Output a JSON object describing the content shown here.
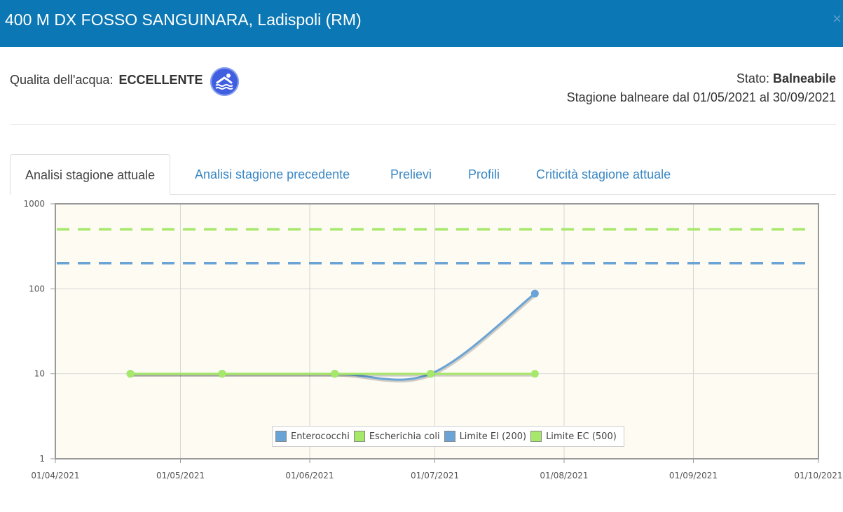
{
  "header": {
    "title": "400 M DX FOSSO SANGUINARA, Ladispoli (RM)",
    "close_label": "×"
  },
  "quality": {
    "label": "Qualita dell'acqua:",
    "value": "ECCELLENTE",
    "icon": "swimmer-icon"
  },
  "status": {
    "stato_label": "Stato: ",
    "stato_value": "Balneabile",
    "season": "Stagione balneare dal 01/05/2021 al 30/09/2021"
  },
  "tabs": [
    {
      "label": "Analisi stagione attuale",
      "active": true
    },
    {
      "label": "Analisi stagione precedente",
      "active": false
    },
    {
      "label": "Prelievi",
      "active": false
    },
    {
      "label": "Profili",
      "active": false
    },
    {
      "label": "Criticità stagione attuale",
      "active": false
    }
  ],
  "chart_data": {
    "type": "line",
    "y_scale": "log",
    "ylim": [
      1,
      1000
    ],
    "y_ticks": [
      1,
      10,
      100,
      1000
    ],
    "xlim": [
      "2021-04-01",
      "2021-10-01"
    ],
    "x_ticks": [
      "01/04/2021",
      "01/05/2021",
      "01/06/2021",
      "01/07/2021",
      "01/08/2021",
      "01/09/2021",
      "01/10/2021"
    ],
    "grid": true,
    "legend_position": "bottom-center",
    "series": [
      {
        "name": "Enterococchi",
        "color": "#6aa3d6",
        "points": [
          [
            "2021-04-19",
            10
          ],
          [
            "2021-05-11",
            10
          ],
          [
            "2021-06-07",
            10
          ],
          [
            "2021-06-30",
            10
          ],
          [
            "2021-07-25",
            88
          ]
        ]
      },
      {
        "name": "Escherichia coli",
        "color": "#a6e86a",
        "points": [
          [
            "2021-04-19",
            10
          ],
          [
            "2021-05-11",
            10
          ],
          [
            "2021-06-07",
            10
          ],
          [
            "2021-06-30",
            10
          ],
          [
            "2021-07-25",
            10
          ]
        ]
      }
    ],
    "limits": [
      {
        "name": "Limite EI (200)",
        "value": 200,
        "color": "#6aa3d6"
      },
      {
        "name": "Limite EC (500)",
        "value": 500,
        "color": "#a6e86a"
      }
    ]
  }
}
